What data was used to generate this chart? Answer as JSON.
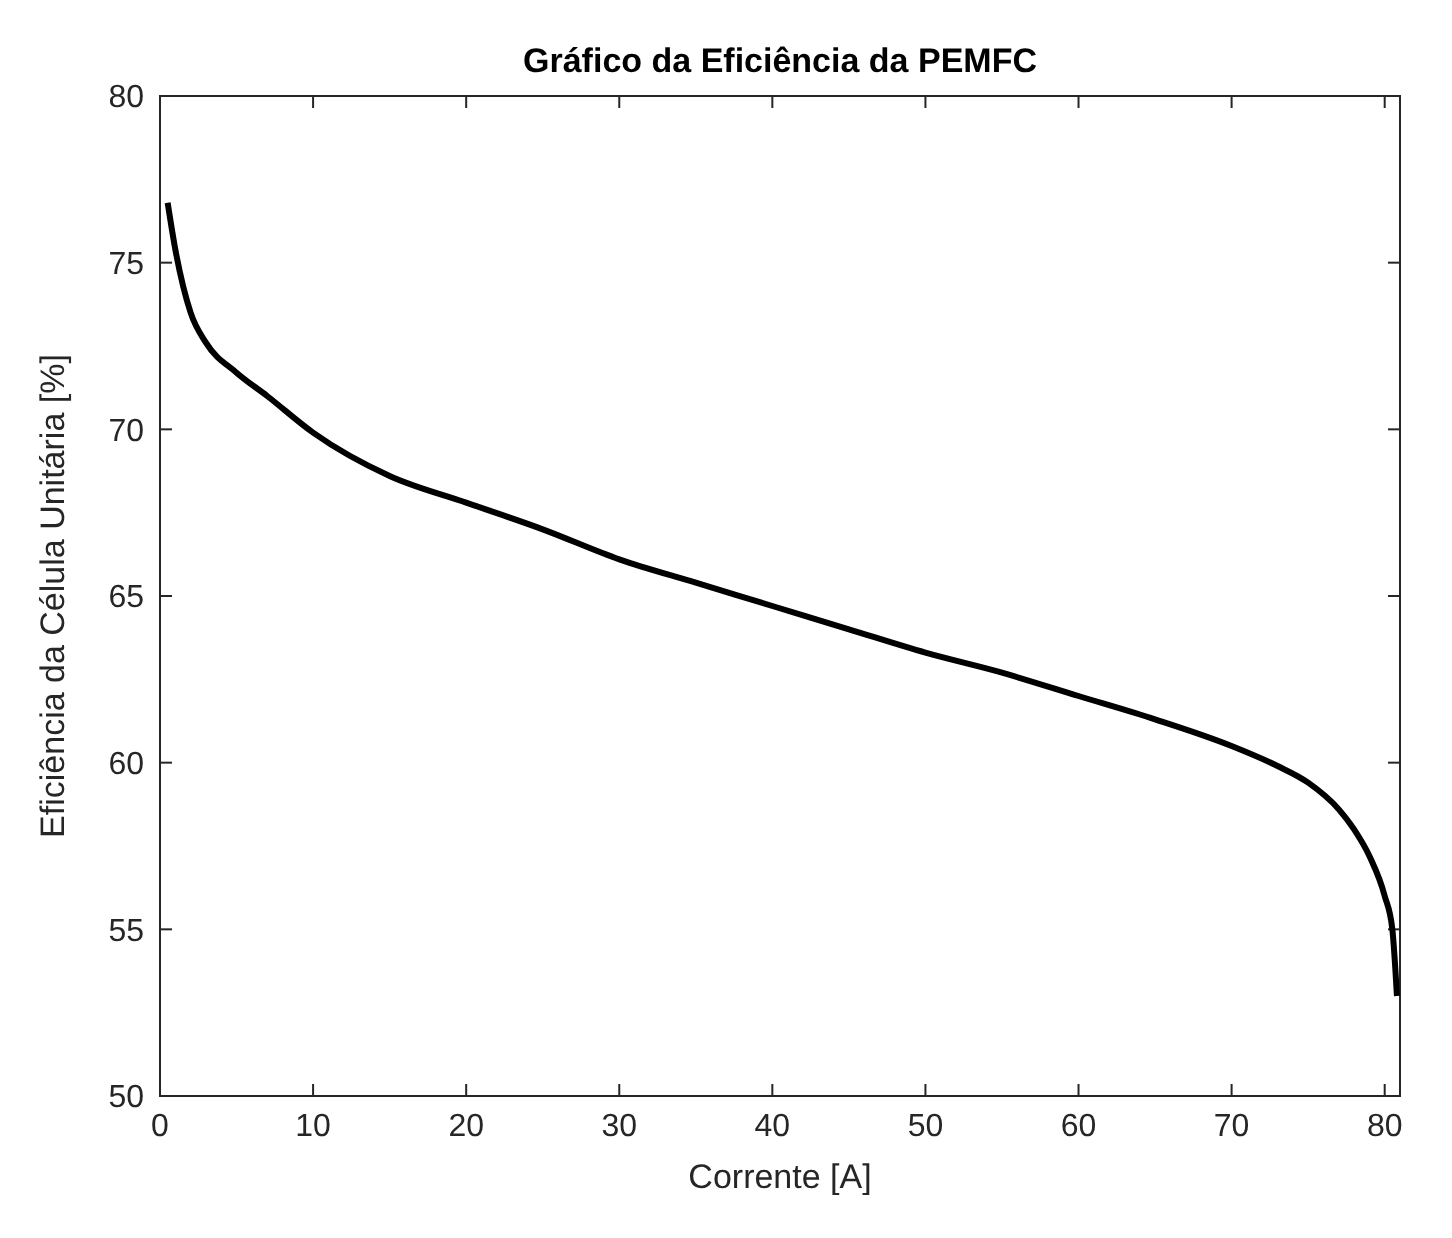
{
  "chart_data": {
    "type": "line",
    "title": "Gráfico da Eficiência da PEMFC",
    "xlabel": "Corrente [A]",
    "ylabel": "Eficiência da Célula Unitária [%]",
    "xlim": [
      0,
      81
    ],
    "xticks": [
      0,
      10,
      20,
      30,
      40,
      50,
      60,
      70,
      80
    ],
    "ylim": [
      50,
      80
    ],
    "yticks": [
      50,
      55,
      60,
      65,
      70,
      75,
      80
    ],
    "marker": "none",
    "line_style": "solid",
    "series": [
      {
        "color": "#000000",
        "x": [
          0.5,
          1,
          2,
          3,
          5,
          7,
          10,
          15,
          20,
          25,
          30,
          35,
          40,
          45,
          50,
          55,
          60,
          65,
          70,
          73,
          75,
          77,
          78,
          79,
          80,
          80.5,
          80.8
        ],
        "values": [
          76.8,
          75.4,
          73.5,
          72.6,
          71.7,
          71.0,
          69.9,
          68.6,
          67.8,
          67.0,
          66.1,
          65.4,
          64.7,
          64.0,
          63.3,
          62.7,
          62.0,
          61.3,
          60.5,
          59.9,
          59.4,
          58.6,
          58.0,
          57.2,
          56.0,
          55.0,
          53.0
        ]
      }
    ]
  }
}
